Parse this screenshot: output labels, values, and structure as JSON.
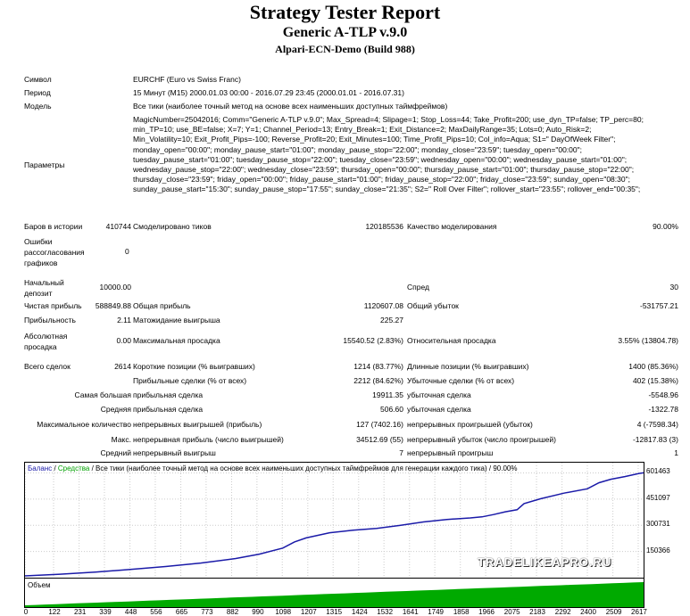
{
  "header": {
    "title": "Strategy Tester Report",
    "ea": "Generic A-TLP v.9.0",
    "server": "Alpari-ECN-Demo (Build 988)"
  },
  "info": {
    "symbol_label": "Символ",
    "symbol": "EURCHF (Euro vs Swiss Franc)",
    "period_label": "Период",
    "period": "15 Минут (M15) 2000.01.03 00:00 - 2016.07.29 23:45 (2000.01.01 - 2016.07.31)",
    "model_label": "Модель",
    "model": "Все тики (наиболее точный метод на основе всех наименьших доступных таймфреймов)",
    "params_label": "Параметры",
    "params": "MagicNumber=25042016; Comm=\"Generic A-TLP v.9.0\"; Max_Spread=4; Slipage=1; Stop_Loss=44; Take_Profit=200; use_dyn_TP=false; TP_perc=80; min_TP=10; use_BE=false; X=7; Y=1; Channel_Period=13; Entry_Break=1; Exit_Distance=2; MaxDailyRange=35; Lots=0; Auto_Risk=2; Min_Volatility=10; Exit_Profit_Pips=-100; Reverse_Profit=20; Exit_Minutes=100; Time_Profit_Pips=10; Col_info=Aqua; S1=\" DayOfWeek Filter\"; monday_open=\"00:00\"; monday_pause_start=\"01:00\"; monday_pause_stop=\"22:00\"; monday_close=\"23:59\"; tuesday_open=\"00:00\"; tuesday_pause_start=\"01:00\"; tuesday_pause_stop=\"22:00\"; tuesday_close=\"23:59\"; wednesday_open=\"00:00\"; wednesday_pause_start=\"01:00\"; wednesday_pause_stop=\"22:00\"; wednesday_close=\"23:59\"; thursday_open=\"00:00\"; thursday_pause_start=\"01:00\"; thursday_pause_stop=\"22:00\"; thursday_close=\"23:59\"; friday_open=\"00:00\"; friday_pause_start=\"01:00\"; friday_pause_stop=\"22:00\"; friday_close=\"23:59\"; sunday_open=\"08:30\"; sunday_pause_start=\"15:30\"; sunday_pause_stop=\"17:55\"; sunday_close=\"21:35\"; S2=\" Roll Over Filter\"; rollover_start=\"23:55\"; rollover_end=\"00:35\";"
  },
  "stats": {
    "bars_label": "Баров в истории",
    "bars": "410744",
    "ticks_label": "Смоделировано тиков",
    "ticks": "120185536",
    "quality_label": "Качество моделирования",
    "quality": "90.00%",
    "errors_label": "Ошибки рассогласования графиков",
    "errors": "0",
    "deposit_label": "Начальный депозит",
    "deposit": "10000.00",
    "spread_label": "Спред",
    "spread": "30",
    "net_label": "Чистая прибыль",
    "net": "588849.88",
    "gross_profit_label": "Общая прибыль",
    "gross_profit": "1120607.08",
    "gross_loss_label": "Общий убыток",
    "gross_loss": "-531757.21",
    "pf_label": "Прибыльность",
    "pf": "2.11",
    "payoff_label": "Матожидание выигрыша",
    "payoff": "225.27",
    "abs_dd_label": "Абсолютная просадка",
    "abs_dd": "0.00",
    "max_dd_label": "Максимальная просадка",
    "max_dd": "15540.52 (2.83%)",
    "rel_dd_label": "Относительная просадка",
    "rel_dd": "3.55% (13804.78)",
    "total_label": "Всего сделок",
    "total": "2614",
    "short_label": "Короткие позиции (% выигравших)",
    "short": "1214 (83.77%)",
    "long_label": "Длинные позиции (% выигравших)",
    "long": "1400 (85.36%)",
    "profit_trades_label": "Прибыльные сделки (% от всех)",
    "profit_trades": "2212 (84.62%)",
    "loss_trades_label": "Убыточные сделки (% от всех)",
    "loss_trades": "402 (15.38%)",
    "largest_label": "Самая большая",
    "largest_profit_label": "прибыльная сделка",
    "largest_profit": "19911.35",
    "largest_loss_label": "убыточная сделка",
    "largest_loss": "-5548.96",
    "average_label": "Средняя",
    "avg_profit_label": "прибыльная сделка",
    "avg_profit": "506.60",
    "avg_loss_label": "убыточная сделка",
    "avg_loss": "-1322.78",
    "maxcons_label": "Максимальное количество",
    "maxcons_win_label": "непрерывных выигрышей (прибыль)",
    "maxcons_win": "127 (7402.16)",
    "maxcons_loss_label": "непрерывных проигрышей (убыток)",
    "maxcons_loss": "4 (-7598.34)",
    "maxamt_label": "Макс.",
    "maxamt_win_label": "непрерывная прибыль (число выигрышей)",
    "maxamt_win": "34512.69 (55)",
    "maxamt_loss_label": "непрерывный убыток (число проигрышей)",
    "maxamt_loss": "-12817.83 (3)",
    "avgcons_label": "Средний",
    "avgcons_win_label": "непрерывный выигрыш",
    "avgcons_win": "7",
    "avgcons_loss_label": "непрерывный проигрыш",
    "avgcons_loss": "1"
  },
  "chart_data": {
    "type": "line",
    "legend": {
      "balance": "Баланс",
      "separator1": " / ",
      "equity": "Средства",
      "separator2": " / ",
      "rest": "Все тики (наиболее точный метод на основе всех наименьших доступных таймфреймов для генерации каждого тика) / 90.00%"
    },
    "ylabels": [
      "601463",
      "451097",
      "300731",
      "150366"
    ],
    "yticks": [
      601463,
      451097,
      300731,
      150366
    ],
    "ylim": [
      0,
      660000
    ],
    "xlabels": [
      "0",
      "122",
      "231",
      "339",
      "448",
      "556",
      "665",
      "773",
      "882",
      "990",
      "1098",
      "1207",
      "1315",
      "1424",
      "1532",
      "1641",
      "1749",
      "1858",
      "1966",
      "2075",
      "2183",
      "2292",
      "2400",
      "2509",
      "2617"
    ],
    "xlim": [
      0,
      2640
    ],
    "volume_label": "Объем",
    "balance_points": [
      [
        0,
        10000
      ],
      [
        150,
        20000
      ],
      [
        300,
        32000
      ],
      [
        450,
        47000
      ],
      [
        600,
        64000
      ],
      [
        750,
        84000
      ],
      [
        900,
        110000
      ],
      [
        1000,
        135000
      ],
      [
        1100,
        170000
      ],
      [
        1150,
        205000
      ],
      [
        1200,
        228000
      ],
      [
        1300,
        258000
      ],
      [
        1400,
        272000
      ],
      [
        1500,
        283000
      ],
      [
        1600,
        300000
      ],
      [
        1700,
        320000
      ],
      [
        1800,
        334000
      ],
      [
        1900,
        343000
      ],
      [
        1950,
        349000
      ],
      [
        2000,
        362000
      ],
      [
        2050,
        378000
      ],
      [
        2100,
        390000
      ],
      [
        2130,
        425000
      ],
      [
        2200,
        453000
      ],
      [
        2300,
        485000
      ],
      [
        2400,
        510000
      ],
      [
        2450,
        545000
      ],
      [
        2500,
        565000
      ],
      [
        2560,
        580000
      ],
      [
        2620,
        598000
      ],
      [
        2640,
        601463
      ]
    ],
    "colors": {
      "balance": "#1a1aa8",
      "equity": "#00a000",
      "volume": "#00aa00"
    },
    "watermark": "TRADELIKEAPRO.RU"
  }
}
